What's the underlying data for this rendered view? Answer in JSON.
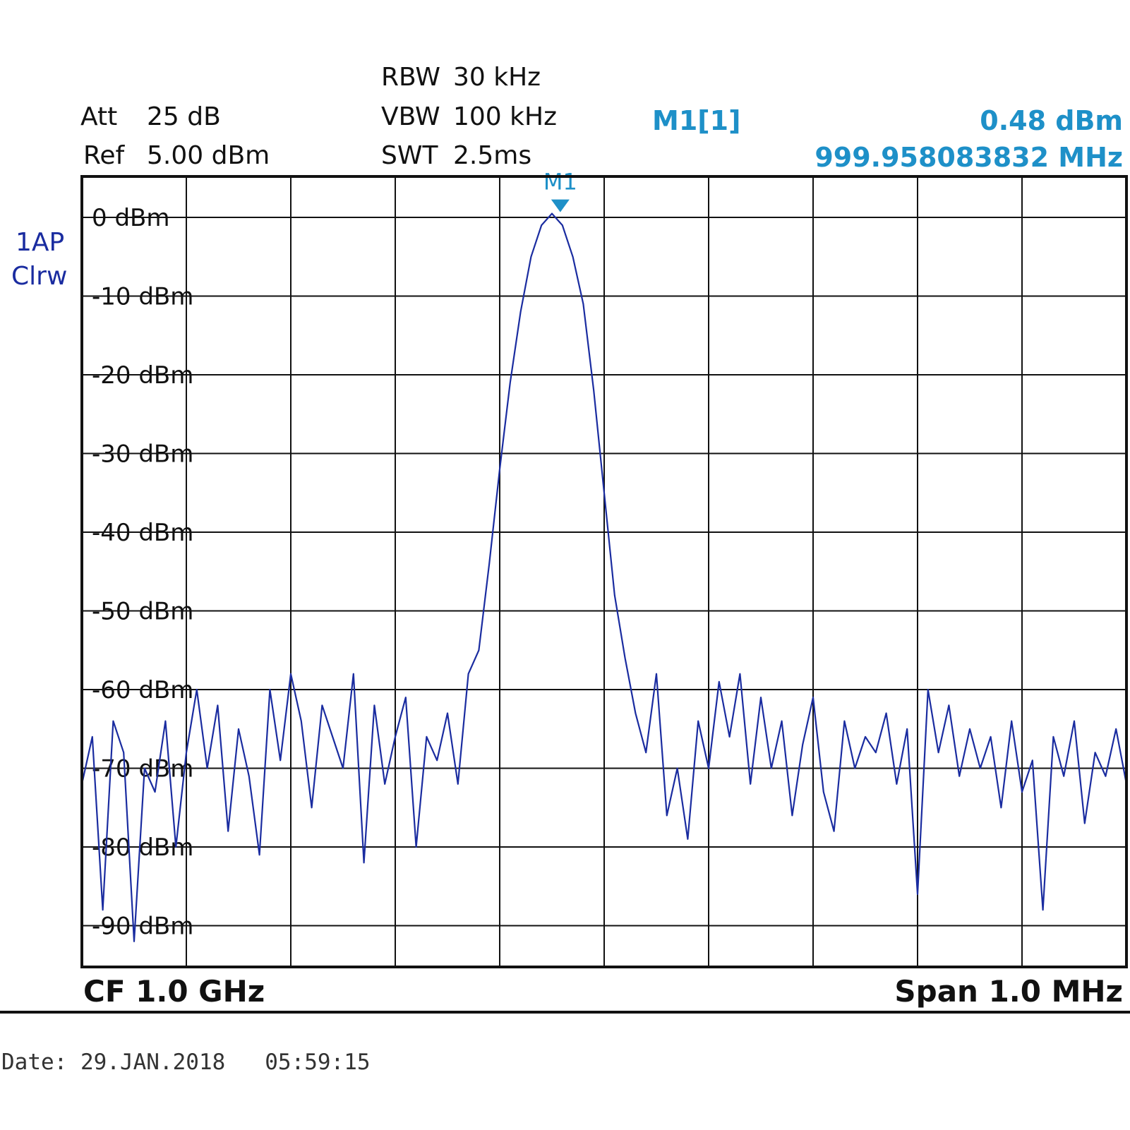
{
  "header": {
    "att_label": "Att",
    "att_value": "25 dB",
    "ref_label": "Ref",
    "ref_value": "5.00 dBm",
    "rbw_label": "RBW",
    "rbw_value": "30 kHz",
    "vbw_label": "VBW",
    "vbw_value": "100 kHz",
    "swt_label": "SWT",
    "swt_value": "2.5ms"
  },
  "marker": {
    "name": "M1[1]",
    "level": "0.48 dBm",
    "frequency": "999.958083832 MHz",
    "tag": "M1",
    "color": "#1e90c8"
  },
  "trace": {
    "line1": "1AP",
    "line2": "Clrw",
    "color": "#1a2ca0"
  },
  "footer": {
    "center_freq": "CF 1.0 GHz",
    "span": "Span 1.0 MHz"
  },
  "date_line": "Date: 29.JAN.2018   05:59:15",
  "chart_data": {
    "type": "line",
    "xlabel": "",
    "ylabel": "",
    "x_unit": "MHz",
    "xlim": [
      999.5,
      1000.5
    ],
    "ylim": [
      -95,
      5
    ],
    "grid": true,
    "y_ticks": [
      0,
      -10,
      -20,
      -30,
      -40,
      -50,
      -60,
      -70,
      -80,
      -90
    ],
    "y_tick_labels": [
      "0 dBm",
      "-10 dBm",
      "-20 dBm",
      "-30 dBm",
      "-40 dBm",
      "-50 dBm",
      "-60 dBm",
      "-70 dBm",
      "-80 dBm",
      "-90 dBm"
    ],
    "marker": {
      "x": 999.958,
      "y": 0.48
    },
    "series": [
      {
        "x": [
          999.5,
          999.51,
          999.52,
          999.53,
          999.54,
          999.55,
          999.56,
          999.57,
          999.58,
          999.59,
          999.6,
          999.61,
          999.62,
          999.63,
          999.64,
          999.65,
          999.66,
          999.67,
          999.68,
          999.69,
          999.7,
          999.71,
          999.72,
          999.73,
          999.74,
          999.75,
          999.76,
          999.77,
          999.78,
          999.79,
          999.8,
          999.81,
          999.82,
          999.83,
          999.84,
          999.85,
          999.86,
          999.87,
          999.88,
          999.89,
          999.9,
          999.91,
          999.92,
          999.93,
          999.94,
          999.95,
          999.96,
          999.97,
          999.98,
          999.99,
          1000.0,
          1000.01,
          1000.02,
          1000.03,
          1000.04,
          1000.05,
          1000.06,
          1000.07,
          1000.08,
          1000.09,
          1000.1,
          1000.11,
          1000.12,
          1000.13,
          1000.14,
          1000.15,
          1000.16,
          1000.17,
          1000.18,
          1000.19,
          1000.2,
          1000.21,
          1000.22,
          1000.23,
          1000.24,
          1000.25,
          1000.26,
          1000.27,
          1000.28,
          1000.29,
          1000.3,
          1000.31,
          1000.32,
          1000.33,
          1000.34,
          1000.35,
          1000.36,
          1000.37,
          1000.38,
          1000.39,
          1000.4,
          1000.41,
          1000.42,
          1000.43,
          1000.44,
          1000.45,
          1000.46,
          1000.47,
          1000.48,
          1000.49,
          1000.5
        ],
        "y": [
          -72,
          -66,
          -88,
          -64,
          -68,
          -92,
          -70,
          -73,
          -64,
          -80,
          -68,
          -60,
          -70,
          -62,
          -78,
          -65,
          -71,
          -81,
          -60,
          -69,
          -58,
          -64,
          -75,
          -62,
          -66,
          -70,
          -58,
          -82,
          -62,
          -72,
          -66,
          -61,
          -80,
          -66,
          -69,
          -63,
          -72,
          -58,
          -55,
          -44,
          -32,
          -21,
          -12,
          -5,
          -1,
          0.48,
          -1,
          -5,
          -11,
          -22,
          -35,
          -48,
          -56,
          -63,
          -68,
          -58,
          -76,
          -70,
          -79,
          -64,
          -70,
          -59,
          -66,
          -58,
          -72,
          -61,
          -70,
          -64,
          -76,
          -67,
          -61,
          -73,
          -78,
          -64,
          -70,
          -66,
          -68,
          -63,
          -72,
          -65,
          -86,
          -60,
          -68,
          -62,
          -71,
          -65,
          -70,
          -66,
          -75,
          -64,
          -73,
          -69,
          -88,
          -66,
          -71,
          -64,
          -77,
          -68,
          -71,
          -65,
          -72
        ]
      }
    ]
  }
}
